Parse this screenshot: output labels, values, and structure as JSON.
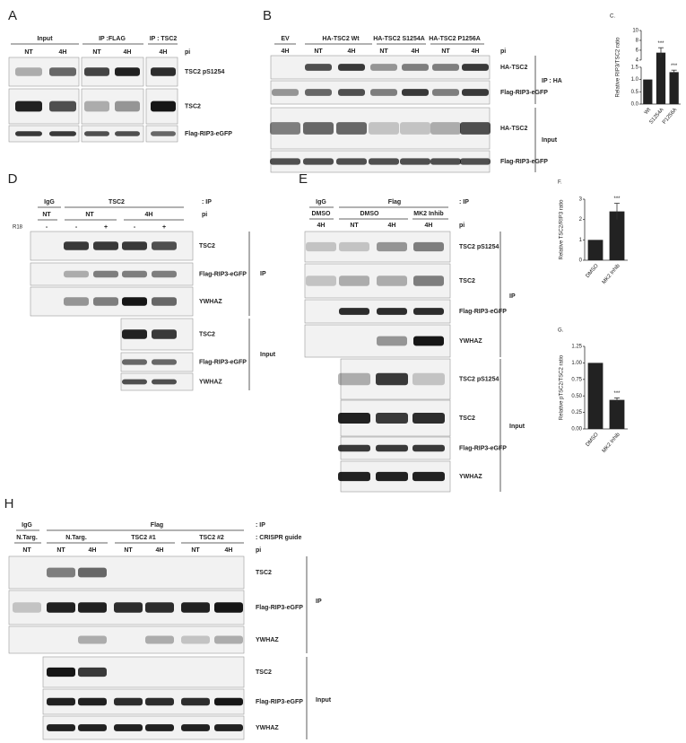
{
  "panels": {
    "A": {
      "letter": "A",
      "groups": [
        "Input",
        "IP :FLAG",
        "IP : TSC2"
      ],
      "lanes": [
        "NT",
        "4H",
        "NT",
        "4H",
        "4H"
      ],
      "lane_axis": "pi",
      "blots": [
        "TSC2 pS1254",
        "TSC2",
        "Flag-RIP3-eGFP"
      ]
    },
    "B": {
      "letter": "B",
      "groups": [
        "EV",
        "HA-TSC2 Wt",
        "HA-TSC2 S1254A",
        "HA-TSC2 P1256A"
      ],
      "lanes": [
        "4H",
        "NT",
        "4H",
        "NT",
        "4H",
        "NT",
        "4H"
      ],
      "lane_axis": "pi",
      "ip_blots": [
        "HA-TSC2",
        "Flag-RIP3-eGFP"
      ],
      "ip_label": "IP : HA",
      "input_blots": [
        "HA-TSC2",
        "Flag-RIP3-eGFP"
      ],
      "input_label": "Input"
    },
    "C": {
      "letter": "C.",
      "type": "bar",
      "y_label": "Relative RIP3/TSC2 ratio",
      "categories": [
        "Wt",
        "S1254A",
        "P1256A"
      ],
      "values": [
        1.0,
        5.5,
        1.3
      ],
      "errors": [
        0,
        1.0,
        0.08
      ],
      "annotations": [
        null,
        "***",
        "***"
      ],
      "color": "#222222",
      "ylim": [
        0,
        10
      ],
      "axis_break": [
        1.5,
        4
      ],
      "yticks": [
        {
          "value": 0,
          "label": "0.0"
        },
        0.5,
        {
          "value": 1,
          "label": "1.0"
        },
        1.5,
        4,
        6,
        8,
        10
      ]
    },
    "D": {
      "letter": "D",
      "groups": [
        "IgG",
        "TSC2"
      ],
      "group_axis": ": IP",
      "sub_groups": [
        "NT",
        "NT",
        "4H"
      ],
      "lane_axis": "pi",
      "treatment_label": "R18",
      "treatments": [
        "-",
        "-",
        "+",
        "-",
        "+"
      ],
      "ip_blots": [
        "TSC2",
        "Flag-RIP3-eGFP",
        "YWHAZ"
      ],
      "ip_label": "IP",
      "input_blots": [
        "TSC2",
        "Flag-RIP3-eGFP",
        "YWHAZ"
      ],
      "input_label": "Input"
    },
    "E": {
      "letter": "E",
      "groups": [
        "IgG",
        "Flag"
      ],
      "group_axis": ": IP",
      "sub_groups": [
        "DMSO",
        "DMSO",
        "MK2 Inhib"
      ],
      "lanes": [
        "4H",
        "NT",
        "4H",
        "4H"
      ],
      "lane_axis": "pi",
      "ip_blots": [
        "TSC2 pS1254",
        "TSC2",
        "Flag-RIP3-eGFP",
        "YWHAZ"
      ],
      "ip_label": "IP",
      "input_blots": [
        "TSC2 pS1254",
        "TSC2",
        "Flag-RIP3-eGFP",
        "YWHAZ"
      ],
      "input_label": "Input"
    },
    "F": {
      "letter": "F.",
      "type": "bar",
      "y_label": "Relative TSC2/RIP3 ratio",
      "categories": [
        "DMSO",
        "MK2 Inhib"
      ],
      "values": [
        1.0,
        2.4
      ],
      "errors": [
        0,
        0.4
      ],
      "annotations": [
        null,
        "***"
      ],
      "color": "#222222",
      "ylim": [
        0,
        3
      ],
      "yticks": [
        0,
        1,
        2,
        3
      ]
    },
    "G": {
      "letter": "G.",
      "type": "bar",
      "y_label": "Relative pTSC2/TSC2 ratio",
      "categories": [
        "DMSO",
        "MK2 Inhib"
      ],
      "values": [
        1.0,
        0.44
      ],
      "errors": [
        0,
        0.03
      ],
      "annotations": [
        null,
        "***"
      ],
      "color": "#222222",
      "ylim": [
        0,
        1.25
      ],
      "yticks": [
        {
          "value": 0,
          "label": "0.00"
        },
        0.25,
        {
          "value": 0.5,
          "label": "0.50"
        },
        0.75,
        {
          "value": 1,
          "label": "1.00"
        },
        1.25
      ]
    },
    "H": {
      "letter": "H",
      "groups": [
        "IgG",
        "Flag"
      ],
      "group_axis": ": IP",
      "guides": [
        "N.Targ.",
        "N.Targ.",
        "TSC2 #1",
        "TSC2 #2"
      ],
      "guide_axis": ": CRISPR guide",
      "lanes": [
        "NT",
        "NT",
        "4H",
        "NT",
        "4H",
        "NT",
        "4H"
      ],
      "lane_axis": "pi",
      "ip_blots": [
        "TSC2",
        "Flag-RIP3-eGFP",
        "YWHAZ"
      ],
      "ip_label": "IP",
      "input_blots": [
        "TSC2",
        "Flag-RIP3-eGFP",
        "YWHAZ"
      ],
      "input_label": "Input"
    }
  }
}
